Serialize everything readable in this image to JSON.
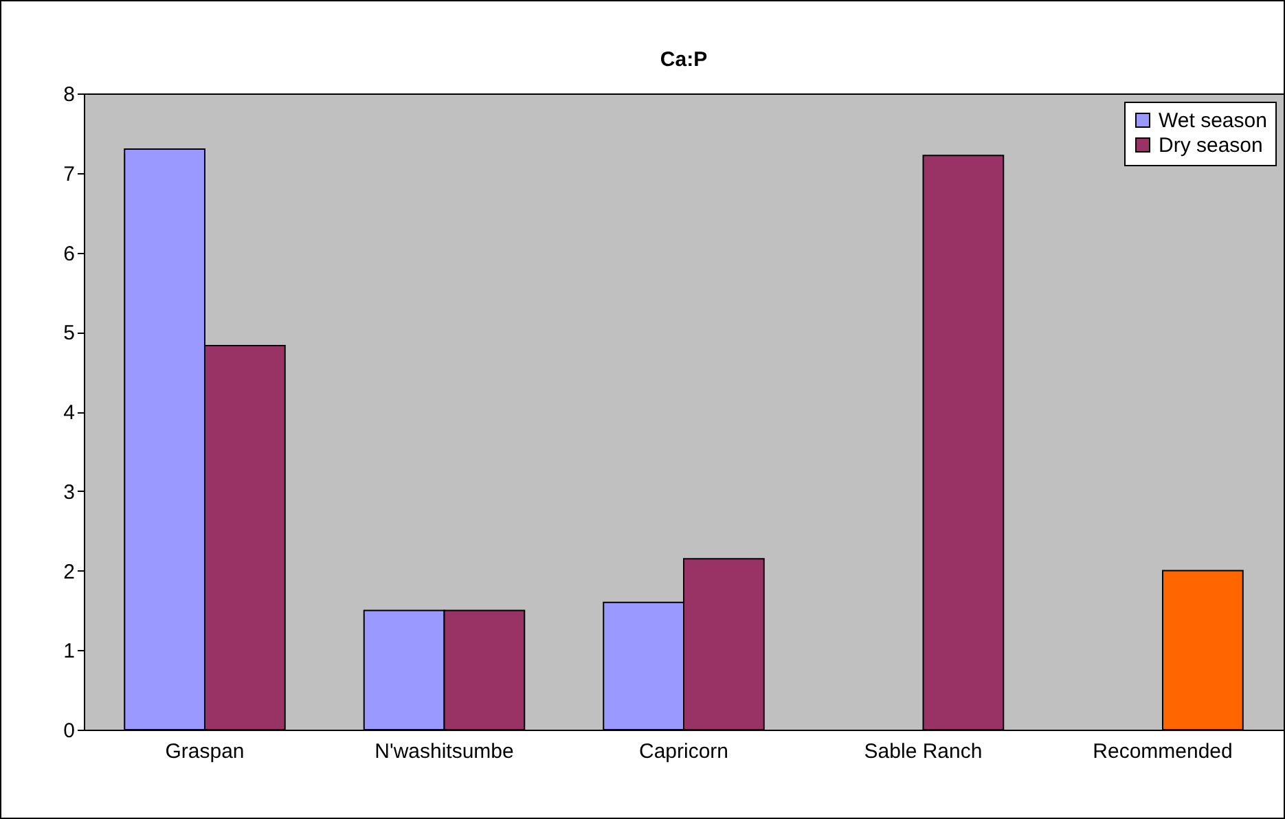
{
  "chart_data": {
    "type": "bar",
    "title": "Ca:P",
    "categories": [
      "Graspan",
      "N'washitsumbe",
      "Capricorn",
      "Sable Ranch",
      "Recommended"
    ],
    "series": [
      {
        "name": "Wet season",
        "color": "#9999ff",
        "values": [
          7.3,
          1.5,
          1.6,
          null,
          null
        ]
      },
      {
        "name": "Dry season",
        "color": "#993366",
        "colors": [
          "#993366",
          "#993366",
          "#993366",
          "#993366",
          "#ff6600"
        ],
        "values": [
          4.83,
          1.5,
          2.15,
          7.22,
          2.0
        ]
      }
    ],
    "ylim": [
      0,
      8
    ],
    "yticks": [
      0,
      1,
      2,
      3,
      4,
      5,
      6,
      7,
      8
    ],
    "grid": false,
    "legend": "top right"
  }
}
